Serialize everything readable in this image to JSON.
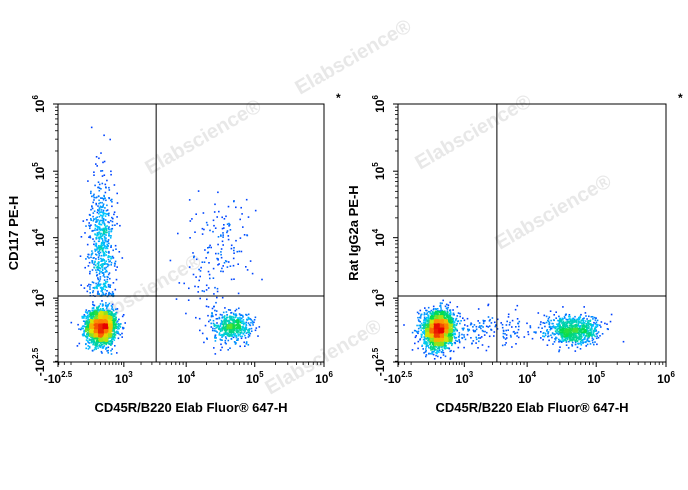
{
  "watermark_text": "Elabscience",
  "watermark_symbol": "®",
  "chart_data": [
    {
      "type": "scatter",
      "title": "",
      "xlabel": "CD45R/B220 Elab Fluor® 647-H",
      "ylabel": "CD117 PE-H",
      "corner_mark": "*",
      "x_scale": "biexponential",
      "y_scale": "biexponential",
      "xlim": [
        "-10^2.5",
        "10^6"
      ],
      "ylim": [
        "-10^2.5",
        "10^6"
      ],
      "x_ticks": [
        {
          "base": "-10",
          "exp": "2.5"
        },
        {
          "base": "10",
          "exp": "3"
        },
        {
          "base": "10",
          "exp": "4"
        },
        {
          "base": "10",
          "exp": "5"
        },
        {
          "base": "10",
          "exp": "6"
        }
      ],
      "y_ticks": [
        {
          "base": "-10",
          "exp": "2.5"
        },
        {
          "base": "10",
          "exp": "3"
        },
        {
          "base": "10",
          "exp": "4"
        },
        {
          "base": "10",
          "exp": "5"
        },
        {
          "base": "10",
          "exp": "6"
        }
      ],
      "gate": {
        "x": 3500,
        "y": 1100
      },
      "populations": [
        {
          "x_center": 300,
          "y_center": 200,
          "spread": "dense",
          "count": 2000
        },
        {
          "x_center": 300,
          "y_center": 8000,
          "spread": "vertical",
          "count": 600
        },
        {
          "x_center": 45000,
          "y_center": 200,
          "spread": "compact",
          "count": 500
        },
        {
          "x_center": 40000,
          "y_center": 8000,
          "spread": "sparse",
          "count": 80
        },
        {
          "x_center": 20000,
          "y_center": 3000,
          "spread": "sparse",
          "count": 100
        }
      ]
    },
    {
      "type": "scatter",
      "title": "",
      "xlabel": "CD45R/B220 Elab Fluor® 647-H",
      "ylabel": "Rat IgG2a PE-H",
      "corner_mark": "*",
      "x_scale": "biexponential",
      "y_scale": "biexponential",
      "xlim": [
        "-10^2.5",
        "10^6"
      ],
      "ylim": [
        "-10^2.5",
        "10^6"
      ],
      "x_ticks": [
        {
          "base": "-10",
          "exp": "2.5"
        },
        {
          "base": "10",
          "exp": "3"
        },
        {
          "base": "10",
          "exp": "4"
        },
        {
          "base": "10",
          "exp": "5"
        },
        {
          "base": "10",
          "exp": "6"
        }
      ],
      "y_ticks": [
        {
          "base": "-10",
          "exp": "2.5"
        },
        {
          "base": "10",
          "exp": "3"
        },
        {
          "base": "10",
          "exp": "4"
        },
        {
          "base": "10",
          "exp": "5"
        },
        {
          "base": "10",
          "exp": "6"
        }
      ],
      "gate": {
        "x": 3500,
        "y": 1100
      },
      "populations": [
        {
          "x_center": 250,
          "y_center": 150,
          "spread": "dense",
          "count": 2200
        },
        {
          "x_center": 45000,
          "y_center": 150,
          "spread": "wide",
          "count": 800
        },
        {
          "x_center": 2000,
          "y_center": 150,
          "spread": "bridge",
          "count": 200
        }
      ]
    }
  ]
}
